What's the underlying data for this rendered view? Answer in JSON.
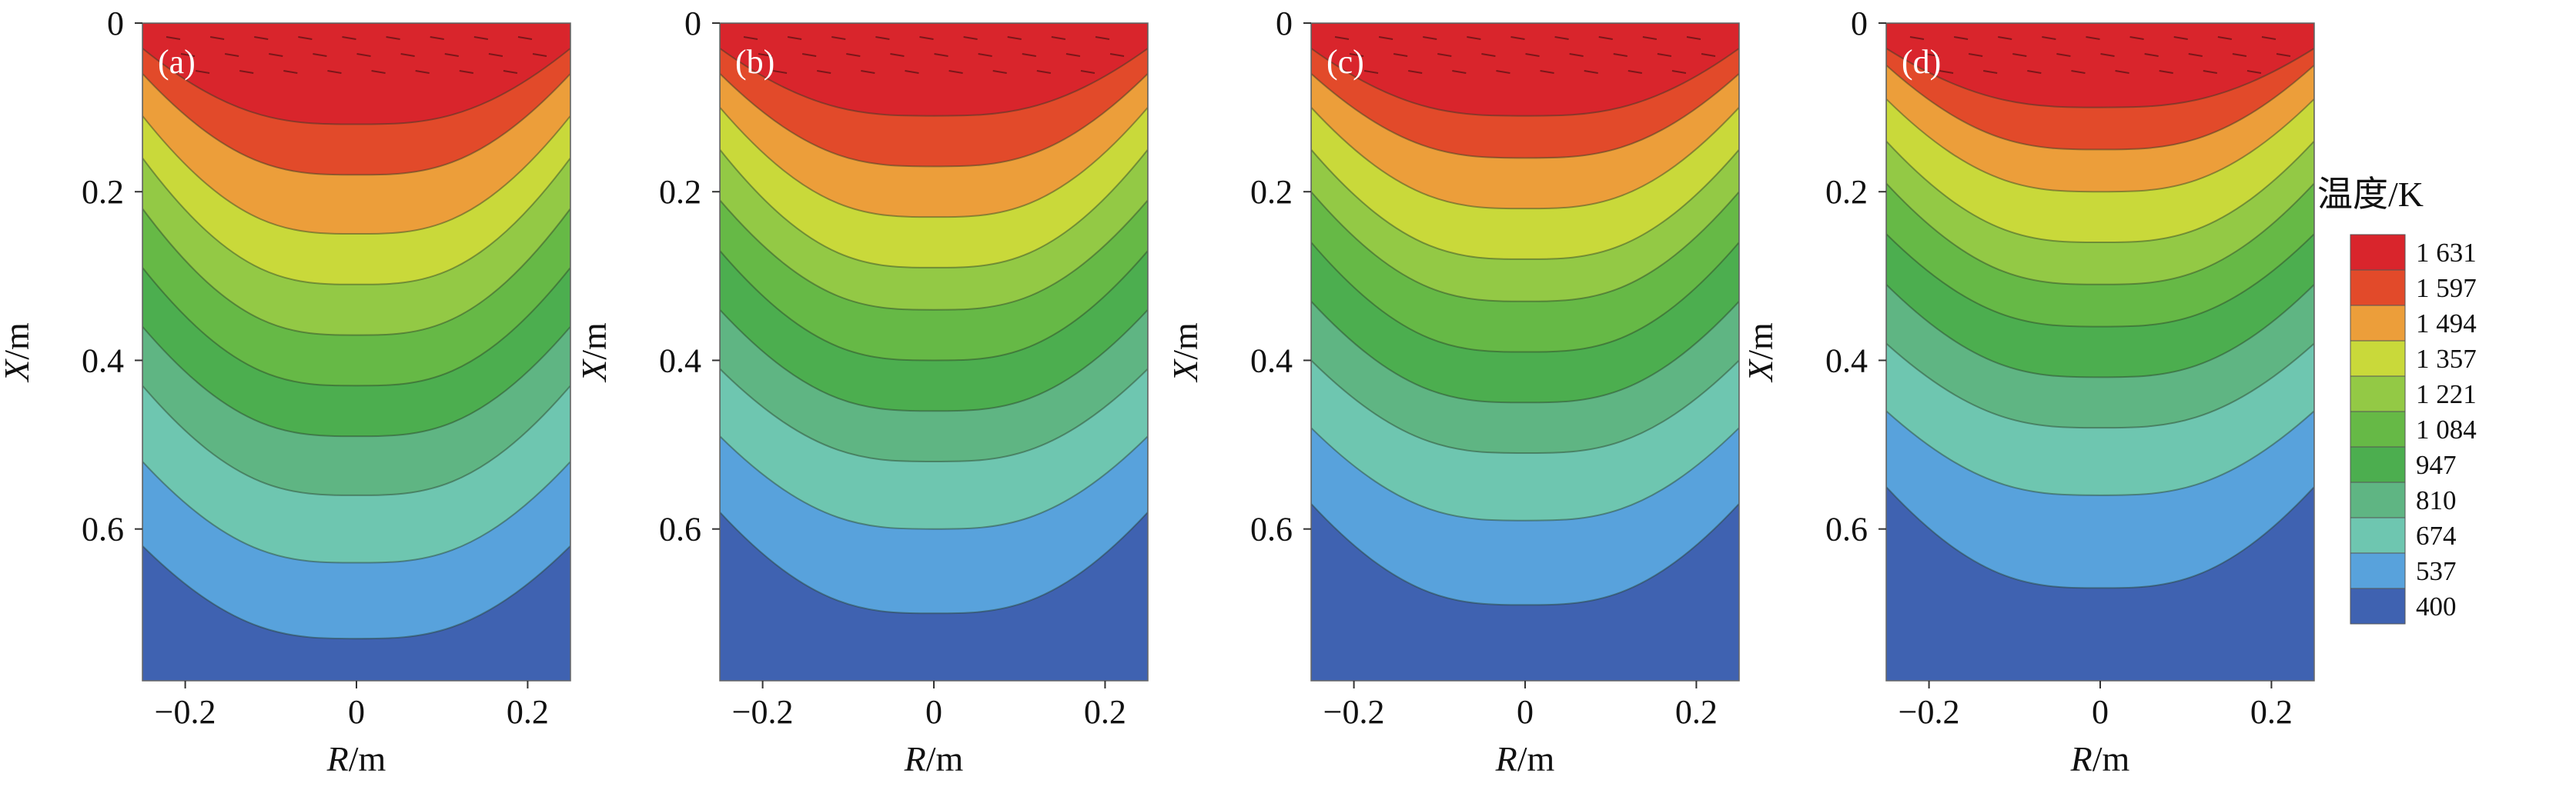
{
  "chart_data": {
    "type": "contour",
    "panels": [
      {
        "label": "(a)",
        "xlabel": {
          "italic": "R",
          "unit": "/m"
        },
        "ylabel": {
          "italic": "X",
          "unit": "/m"
        },
        "xticks": [
          "−0.2",
          "0",
          "0.2"
        ],
        "yticks": [
          "0",
          "0.2",
          "0.4",
          "0.6"
        ],
        "xlim": [
          -0.25,
          0.25
        ],
        "ylim": [
          0,
          0.78
        ],
        "contour_levels_center_depth_m": [
          0.12,
          0.18,
          0.25,
          0.31,
          0.37,
          0.43,
          0.49,
          0.56,
          0.64,
          0.73
        ],
        "contour_levels_edge_depth_m": [
          0.03,
          0.06,
          0.11,
          0.16,
          0.22,
          0.29,
          0.36,
          0.43,
          0.52,
          0.62
        ]
      },
      {
        "label": "(b)",
        "xlabel": {
          "italic": "R",
          "unit": "/m"
        },
        "ylabel": {
          "italic": "X",
          "unit": "/m"
        },
        "xticks": [
          "−0.2",
          "0",
          "0.2"
        ],
        "yticks": [
          "0",
          "0.2",
          "0.4",
          "0.6"
        ],
        "xlim": [
          -0.25,
          0.25
        ],
        "ylim": [
          0,
          0.78
        ],
        "contour_levels_center_depth_m": [
          0.11,
          0.17,
          0.23,
          0.29,
          0.34,
          0.4,
          0.46,
          0.52,
          0.6,
          0.7
        ],
        "contour_levels_edge_depth_m": [
          0.03,
          0.06,
          0.1,
          0.15,
          0.21,
          0.27,
          0.34,
          0.41,
          0.49,
          0.58
        ]
      },
      {
        "label": "(c)",
        "xlabel": {
          "italic": "R",
          "unit": "/m"
        },
        "ylabel": {
          "italic": "X",
          "unit": "/m"
        },
        "xticks": [
          "−0.2",
          "0",
          "0.2"
        ],
        "yticks": [
          "0",
          "0.2",
          "0.4",
          "0.6"
        ],
        "xlim": [
          -0.25,
          0.25
        ],
        "ylim": [
          0,
          0.78
        ],
        "contour_levels_center_depth_m": [
          0.11,
          0.16,
          0.22,
          0.28,
          0.33,
          0.39,
          0.45,
          0.51,
          0.59,
          0.69
        ],
        "contour_levels_edge_depth_m": [
          0.03,
          0.06,
          0.1,
          0.15,
          0.2,
          0.26,
          0.33,
          0.4,
          0.48,
          0.57
        ]
      },
      {
        "label": "(d)",
        "xlabel": {
          "italic": "R",
          "unit": "/m"
        },
        "ylabel": {
          "italic": "X",
          "unit": "/m"
        },
        "xticks": [
          "−0.2",
          "0",
          "0.2"
        ],
        "yticks": [
          "0",
          "0.2",
          "0.4",
          "0.6"
        ],
        "xlim": [
          -0.25,
          0.25
        ],
        "ylim": [
          0,
          0.78
        ],
        "contour_levels_center_depth_m": [
          0.1,
          0.15,
          0.2,
          0.26,
          0.31,
          0.36,
          0.42,
          0.48,
          0.56,
          0.67
        ],
        "contour_levels_edge_depth_m": [
          0.03,
          0.05,
          0.09,
          0.14,
          0.19,
          0.25,
          0.31,
          0.38,
          0.46,
          0.55
        ]
      }
    ],
    "legend": {
      "title": "温度/K",
      "placement": "right",
      "levels": [
        {
          "label": "1 631",
          "color": "#d9252c"
        },
        {
          "label": "1 597",
          "color": "#e24a2a"
        },
        {
          "label": "1 494",
          "color": "#ec9e3a"
        },
        {
          "label": "1 357",
          "color": "#c9d93a"
        },
        {
          "label": "1 221",
          "color": "#93c945"
        },
        {
          "label": "1 084",
          "color": "#66b946"
        },
        {
          "label": "947",
          "color": "#4cae4f"
        },
        {
          "label": "810",
          "color": "#5fb583"
        },
        {
          "label": "674",
          "color": "#6ec6b0"
        },
        {
          "label": "537",
          "color": "#58a2dc"
        },
        {
          "label": "400",
          "color": "#3f62b1"
        }
      ],
      "band_colors_shallow_to_deep": [
        "#d9252c",
        "#e24a2a",
        "#ec9e3a",
        "#c9d93a",
        "#93c945",
        "#66b946",
        "#4cae4f",
        "#5fb583",
        "#6ec6b0",
        "#58a2dc",
        "#3f62b1"
      ]
    }
  }
}
